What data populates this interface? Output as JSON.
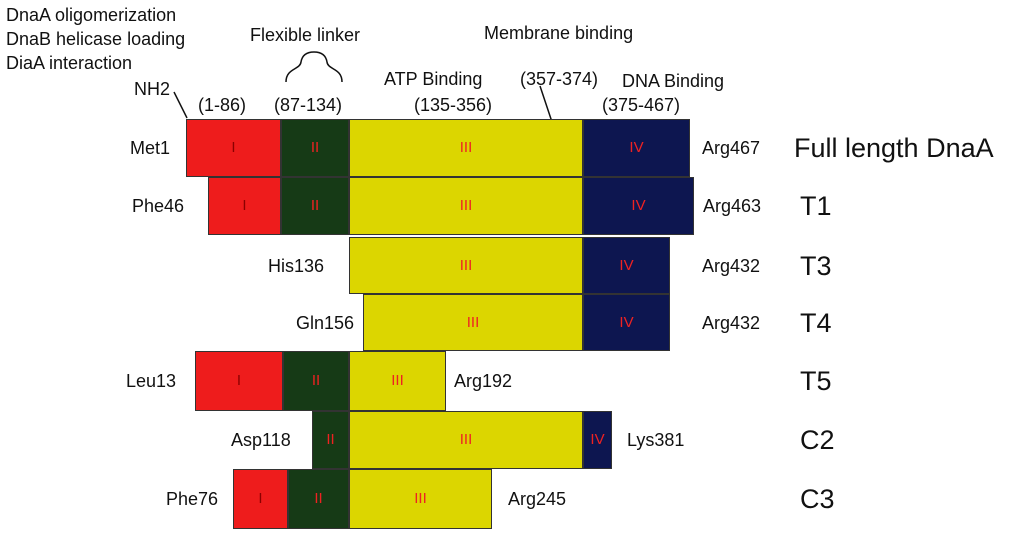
{
  "annotations": {
    "function_lines": [
      "DnaA oligomerization",
      "DnaB helicase loading",
      "DiaA interaction"
    ],
    "flexible_linker": "Flexible  linker",
    "membrane_binding": "Membrane binding",
    "atp_binding": "ATP Binding",
    "dna_binding": "DNA Binding",
    "nh2": "NH2"
  },
  "domain_ranges": {
    "d1": "(1-86)",
    "d2": "(87-134)",
    "d3": "(135-356)",
    "membrane": "(357-374)",
    "d4": "(375-467)"
  },
  "colors": {
    "domain_I": "#ee1c1c",
    "domain_II": "#163a16",
    "domain_III": "#dcd600",
    "domain_IV": "#0d1650"
  },
  "constructs": [
    {
      "name": "Full length DnaA",
      "start": "Met1",
      "end": "Arg467",
      "segments": [
        {
          "d": "d1",
          "label": "I"
        },
        {
          "d": "d2",
          "label": "II"
        },
        {
          "d": "d3",
          "label": "III"
        },
        {
          "d": "d4",
          "label": "IV"
        }
      ]
    },
    {
      "name": "T1",
      "start": "Phe46",
      "end": "Arg463",
      "segments": [
        {
          "d": "d1",
          "label": "I"
        },
        {
          "d": "d2",
          "label": "II"
        },
        {
          "d": "d3",
          "label": "III"
        },
        {
          "d": "d4",
          "label": "IV"
        }
      ]
    },
    {
      "name": "T3",
      "start": "His136",
      "end": "Arg432",
      "segments": [
        {
          "d": "d3",
          "label": "III"
        },
        {
          "d": "d4",
          "label": "IV"
        }
      ]
    },
    {
      "name": "T4",
      "start": "Gln156",
      "end": "Arg432",
      "segments": [
        {
          "d": "d3",
          "label": "III"
        },
        {
          "d": "d4",
          "label": "IV"
        }
      ]
    },
    {
      "name": "T5",
      "start": "Leu13",
      "end": "Arg192",
      "segments": [
        {
          "d": "d1",
          "label": "I"
        },
        {
          "d": "d2",
          "label": "II"
        },
        {
          "d": "d3",
          "label": "III"
        }
      ]
    },
    {
      "name": "C2",
      "start": "Asp118",
      "end": "Lys381",
      "segments": [
        {
          "d": "d2",
          "label": "II"
        },
        {
          "d": "d3",
          "label": "III"
        },
        {
          "d": "d4",
          "label": "IV"
        }
      ]
    },
    {
      "name": "C3",
      "start": "Phe76",
      "end": "Arg245",
      "segments": [
        {
          "d": "d1",
          "label": "I"
        },
        {
          "d": "d2",
          "label": "II"
        },
        {
          "d": "d3",
          "label": "III"
        }
      ]
    }
  ]
}
